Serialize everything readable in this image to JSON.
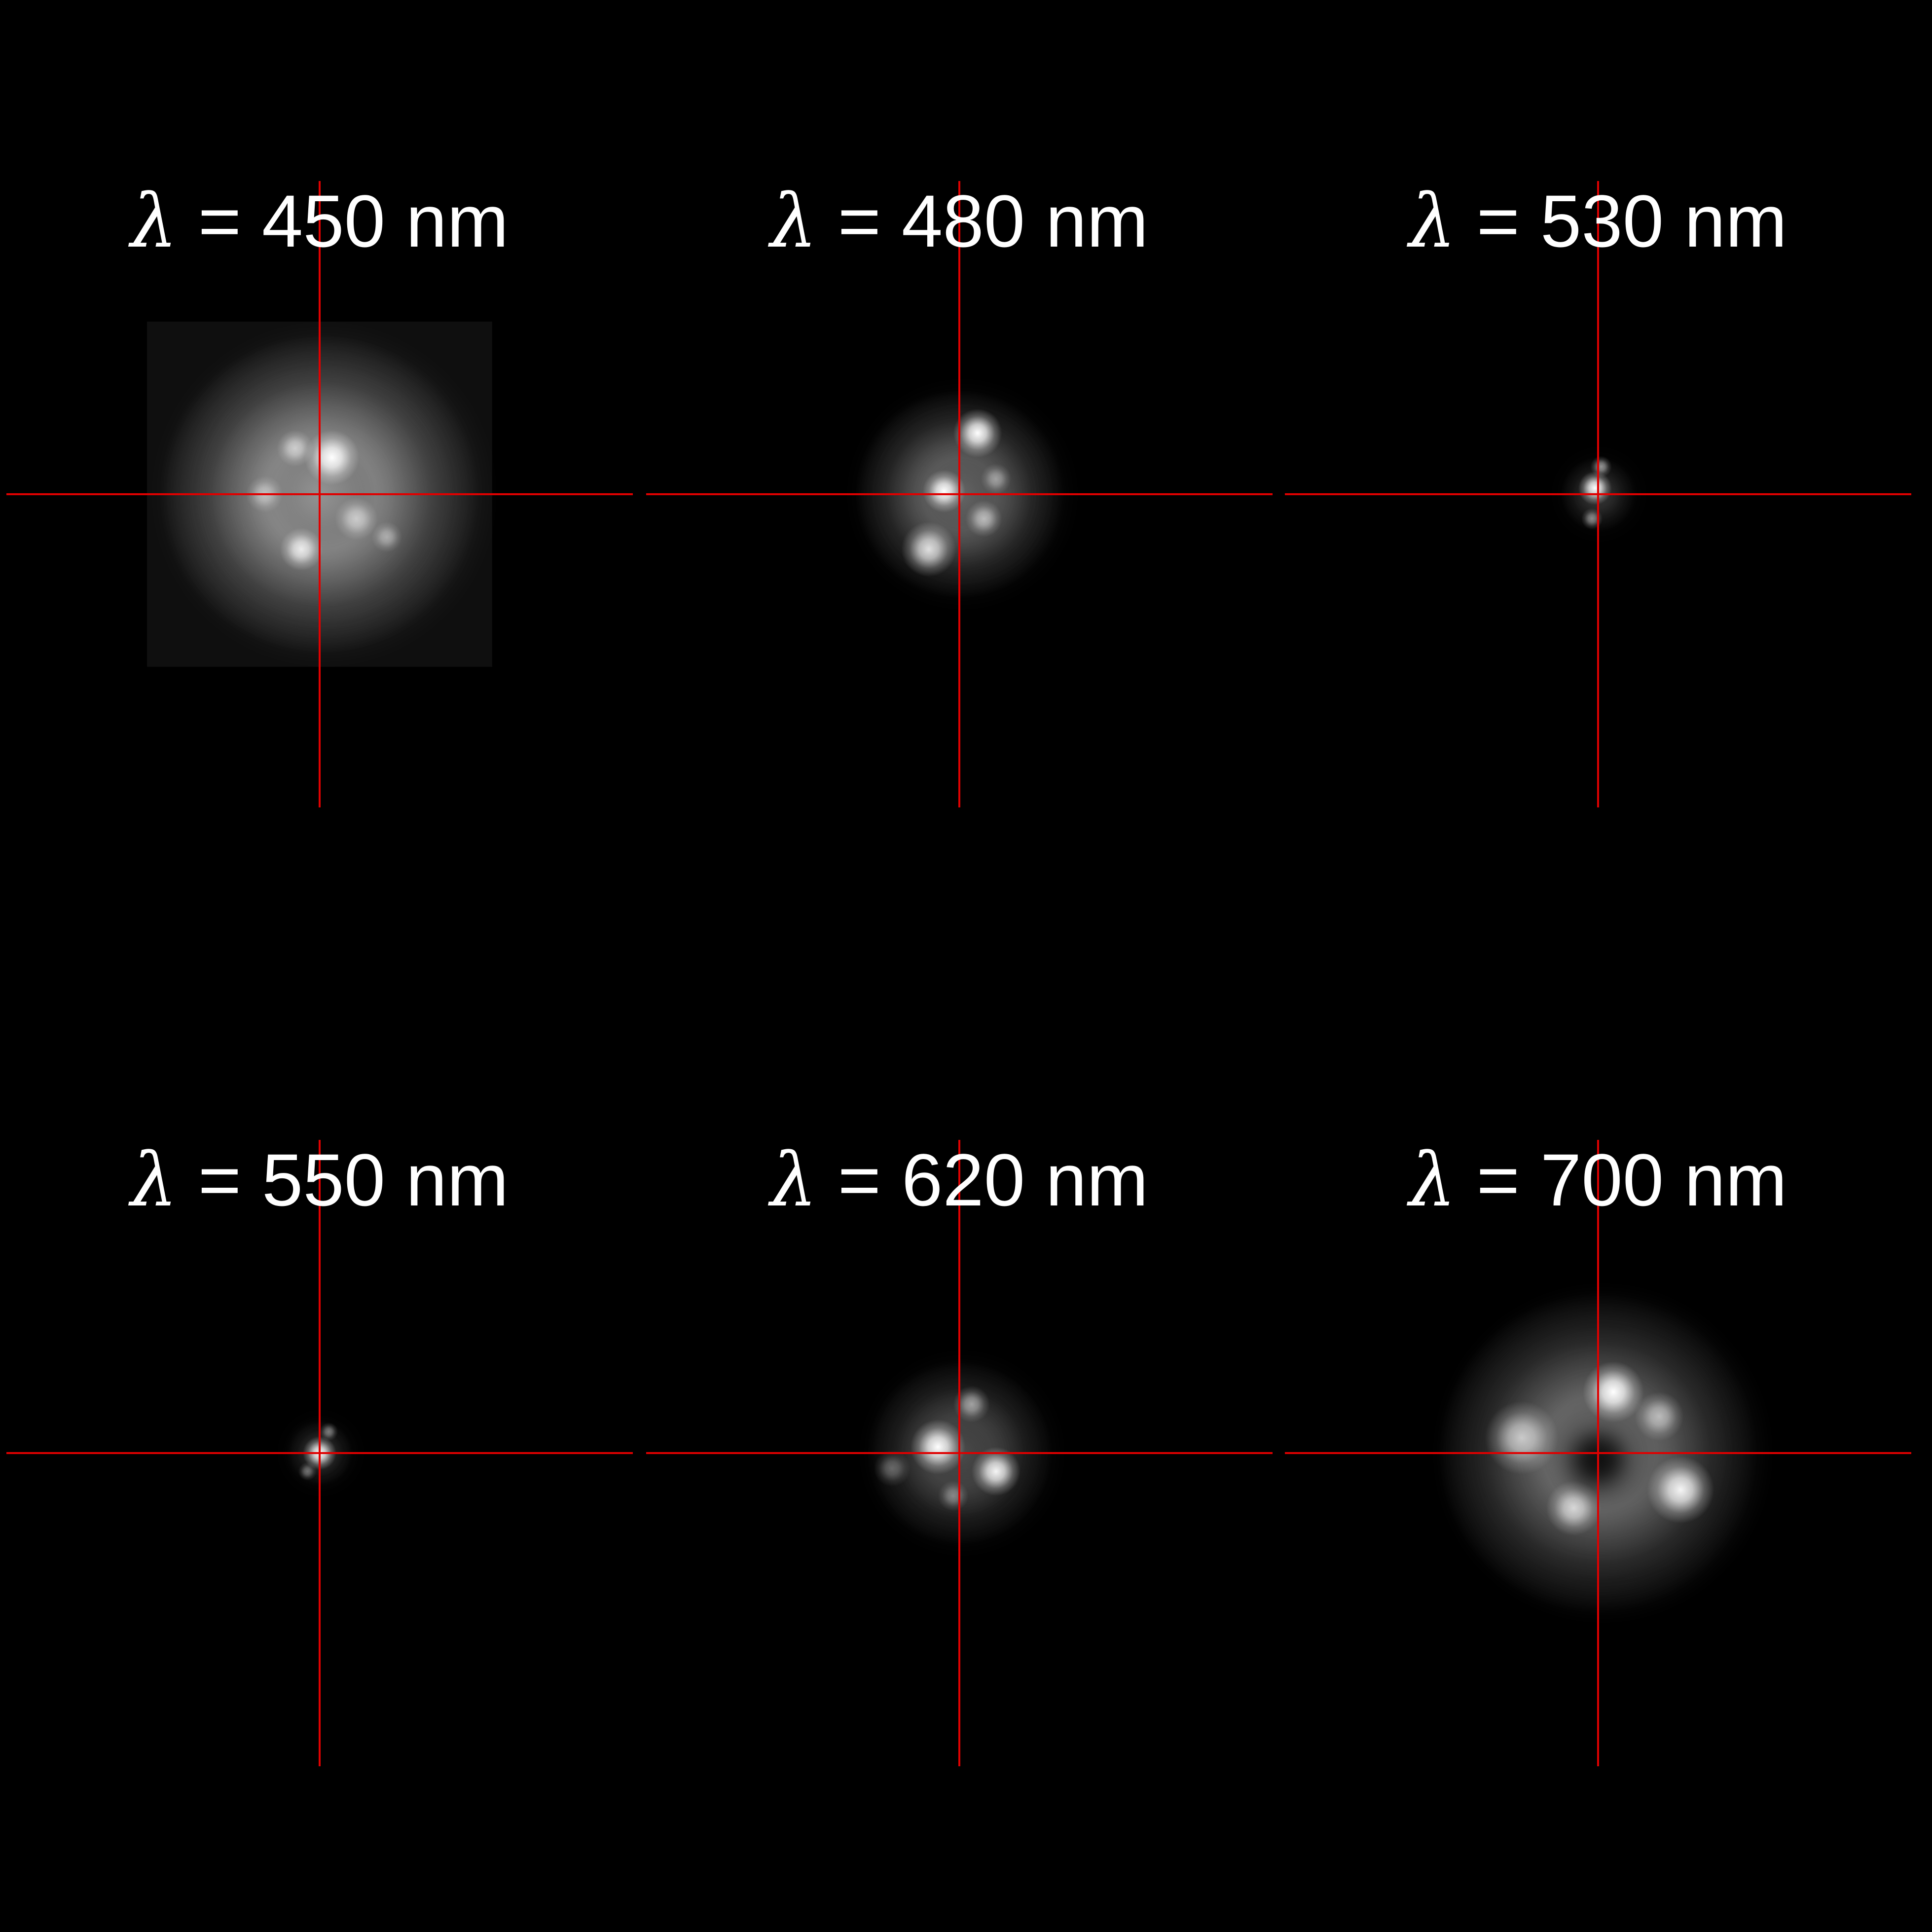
{
  "figure": {
    "background_color": "#000000",
    "crosshair_color": "#e00000",
    "panels": [
      {
        "symbol": "λ",
        "text": " = 450 nm",
        "spot": {
          "halo_size": 0.95,
          "halo_intensity": 0.55,
          "rings": 7,
          "ring_intensity": 0.35,
          "square_halo": true,
          "dark_core": false,
          "lobes": [
            {
              "dx": 0.04,
              "dy": -0.12,
              "r": 0.09,
              "a": 1.0
            },
            {
              "dx": -0.08,
              "dy": -0.15,
              "r": 0.06,
              "a": 0.6
            },
            {
              "dx": -0.06,
              "dy": 0.18,
              "r": 0.07,
              "a": 0.85
            },
            {
              "dx": 0.12,
              "dy": 0.08,
              "r": 0.07,
              "a": 0.6
            },
            {
              "dx": -0.18,
              "dy": 0.0,
              "r": 0.06,
              "a": 0.5
            },
            {
              "dx": 0.22,
              "dy": 0.14,
              "r": 0.05,
              "a": 0.45
            }
          ]
        }
      },
      {
        "symbol": "λ",
        "text": " = 480 nm",
        "spot": {
          "halo_size": 0.62,
          "halo_intensity": 0.4,
          "rings": 5,
          "ring_intensity": 0.3,
          "square_halo": false,
          "dark_core": false,
          "lobes": [
            {
              "dx": 0.06,
              "dy": -0.2,
              "r": 0.08,
              "a": 1.0
            },
            {
              "dx": -0.05,
              "dy": -0.01,
              "r": 0.07,
              "a": 1.0
            },
            {
              "dx": 0.08,
              "dy": 0.08,
              "r": 0.06,
              "a": 0.6
            },
            {
              "dx": -0.1,
              "dy": 0.18,
              "r": 0.09,
              "a": 0.85
            },
            {
              "dx": 0.12,
              "dy": -0.05,
              "r": 0.05,
              "a": 0.45
            }
          ]
        }
      },
      {
        "symbol": "λ",
        "text": " = 530 nm",
        "spot": {
          "halo_size": 0.22,
          "halo_intensity": 0.2,
          "rings": 2,
          "ring_intensity": 0.18,
          "square_halo": false,
          "dark_core": false,
          "lobes": [
            {
              "dx": -0.01,
              "dy": -0.02,
              "r": 0.055,
              "a": 1.0
            },
            {
              "dx": 0.01,
              "dy": -0.09,
              "r": 0.035,
              "a": 0.55
            },
            {
              "dx": -0.02,
              "dy": 0.08,
              "r": 0.035,
              "a": 0.5
            }
          ]
        }
      },
      {
        "symbol": "λ",
        "text": " = 550 nm",
        "spot": {
          "halo_size": 0.2,
          "halo_intensity": 0.18,
          "rings": 2,
          "ring_intensity": 0.16,
          "square_halo": false,
          "dark_core": false,
          "lobes": [
            {
              "dx": 0.0,
              "dy": 0.0,
              "r": 0.055,
              "a": 1.0
            },
            {
              "dx": 0.03,
              "dy": -0.07,
              "r": 0.03,
              "a": 0.45
            },
            {
              "dx": -0.04,
              "dy": 0.06,
              "r": 0.03,
              "a": 0.4
            }
          ]
        }
      },
      {
        "symbol": "λ",
        "text": " = 620 nm",
        "spot": {
          "halo_size": 0.55,
          "halo_intensity": 0.3,
          "rings": 4,
          "ring_intensity": 0.28,
          "square_halo": false,
          "dark_core": false,
          "lobes": [
            {
              "dx": -0.07,
              "dy": -0.02,
              "r": 0.09,
              "a": 1.0
            },
            {
              "dx": 0.12,
              "dy": 0.06,
              "r": 0.08,
              "a": 0.95
            },
            {
              "dx": 0.04,
              "dy": -0.16,
              "r": 0.06,
              "a": 0.55
            },
            {
              "dx": -0.02,
              "dy": 0.14,
              "r": 0.05,
              "a": 0.4
            },
            {
              "dx": -0.22,
              "dy": 0.05,
              "r": 0.06,
              "a": 0.35
            }
          ]
        }
      },
      {
        "symbol": "λ",
        "text": " = 700 nm",
        "spot": {
          "halo_size": 0.95,
          "halo_intensity": 0.45,
          "rings": 5,
          "ring_intensity": 0.3,
          "square_halo": false,
          "dark_core": true,
          "lobes": [
            {
              "dx": 0.05,
              "dy": -0.2,
              "r": 0.1,
              "a": 1.0
            },
            {
              "dx": 0.27,
              "dy": 0.12,
              "r": 0.11,
              "a": 0.95
            },
            {
              "dx": -0.08,
              "dy": 0.18,
              "r": 0.09,
              "a": 0.75
            },
            {
              "dx": -0.25,
              "dy": -0.05,
              "r": 0.12,
              "a": 0.7
            },
            {
              "dx": 0.2,
              "dy": -0.12,
              "r": 0.08,
              "a": 0.6
            }
          ]
        }
      }
    ]
  }
}
